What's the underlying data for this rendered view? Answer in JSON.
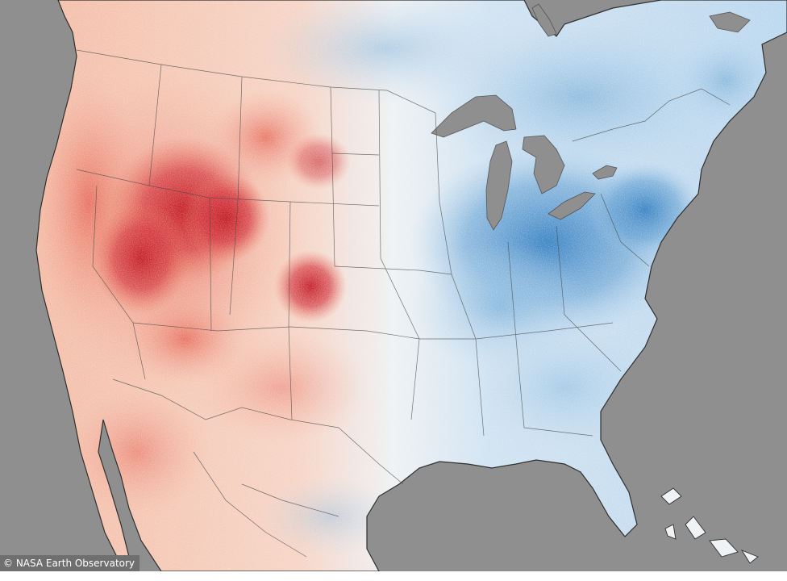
{
  "map": {
    "credit": "© NASA Earth Observatory",
    "colors": {
      "ocean": "#8f8f8f",
      "lakes": "#8f8f8f",
      "border": "#3a3a3a",
      "warm_strong": "#c0141c",
      "warm_mid": "#e8735c",
      "warm_light": "#f7c2ad",
      "neutral": "#f3f3f1",
      "cool_light": "#c6dff0",
      "cool_mid": "#7fb3da",
      "cool_strong": "#2f7cc0"
    }
  }
}
